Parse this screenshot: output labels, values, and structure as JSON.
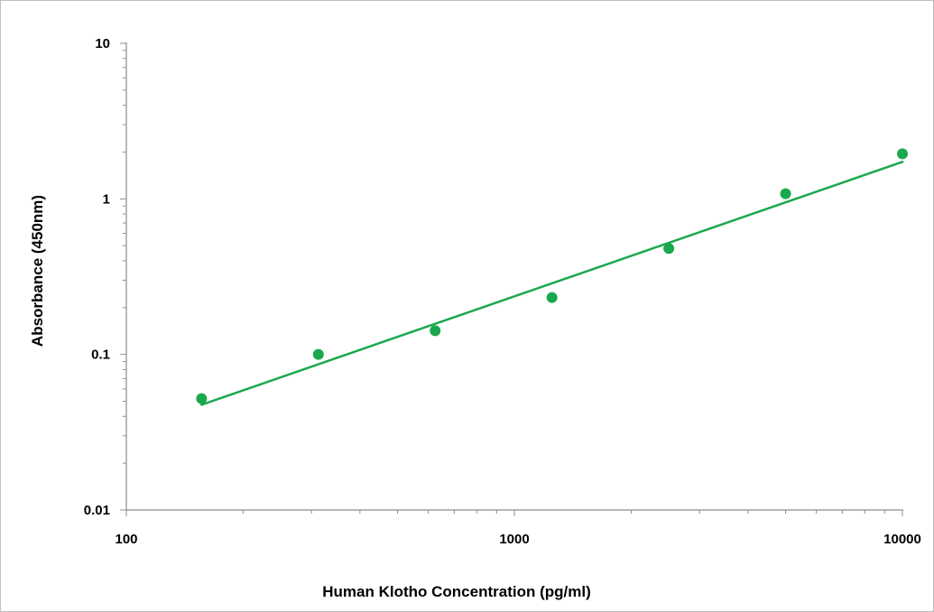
{
  "chart_data": {
    "type": "scatter",
    "title": "",
    "xlabel": "Human Klotho Concentration (pg/ml)",
    "ylabel": "Absorbance (450nm)",
    "x_scale": "log",
    "y_scale": "log",
    "xlim": [
      100,
      10000
    ],
    "ylim": [
      0.01,
      10
    ],
    "x_ticks": [
      100,
      1000,
      10000
    ],
    "x_tick_labels": [
      "100",
      "1000",
      "10000"
    ],
    "y_ticks": [
      0.01,
      0.1,
      1,
      10
    ],
    "y_tick_labels": [
      "0.01",
      "0.1",
      "1",
      "10"
    ],
    "grid": false,
    "legend": "none",
    "series": [
      {
        "x": [
          156.25,
          312.5,
          625,
          1250,
          2500,
          5000,
          10000
        ],
        "y": [
          0.052,
          0.1,
          0.142,
          0.232,
          0.48,
          1.08,
          1.95
        ]
      }
    ],
    "trendline": {
      "type": "power",
      "x": [
        156.25,
        10000
      ],
      "y": [
        0.0475,
        1.73
      ]
    },
    "colors": {
      "marker": "#1aa84e",
      "line": "#1aa84e",
      "axis": "#8c8c8c"
    }
  }
}
